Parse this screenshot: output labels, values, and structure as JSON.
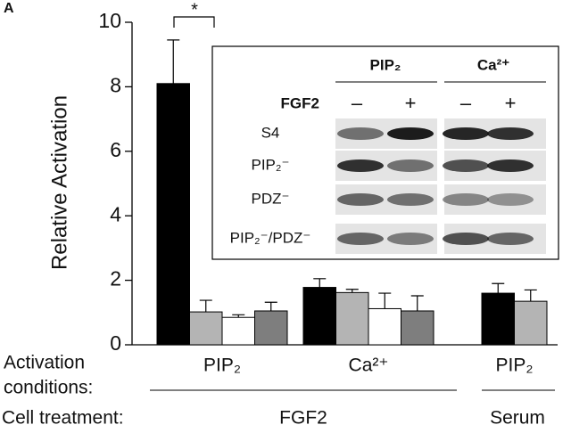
{
  "chart_data": {
    "type": "bar",
    "panel_label": "A",
    "ylabel": "Relative Activation",
    "categories": [
      "PIP₂",
      "Ca²⁺",
      "PIP₂"
    ],
    "series": [
      {
        "color": "#000000",
        "values": [
          8.1,
          1.78,
          1.6
        ],
        "errors": [
          1.35,
          0.27,
          0.3
        ]
      },
      {
        "color": "#b4b4b4",
        "values": [
          1.02,
          1.62,
          1.35
        ],
        "errors": [
          0.36,
          0.1,
          0.35
        ]
      },
      {
        "color": "#ffffff",
        "values": [
          0.85,
          1.12,
          null
        ],
        "errors": [
          0.08,
          0.48,
          null
        ]
      },
      {
        "color": "#7e7e7e",
        "values": [
          1.05,
          1.05,
          null
        ],
        "errors": [
          0.27,
          0.47,
          null
        ]
      }
    ],
    "ylim": [
      0,
      10
    ],
    "yticks": [
      0,
      2,
      4,
      6,
      8,
      10
    ],
    "significance": "*",
    "activation_label": [
      "Activation",
      "conditions:"
    ],
    "treatment_label": "Cell treatment:",
    "treatments": [
      "FGF2",
      "Serum"
    ]
  },
  "inset": {
    "column_headers": [
      "PIP₂",
      "Ca²⁺"
    ],
    "treatment": "FGF2",
    "lanes": [
      "–",
      "+",
      "–",
      "+"
    ],
    "rows": [
      "S4",
      "PIP₂⁻",
      "PDZ⁻",
      "PIP₂⁻/PDZ⁻"
    ]
  }
}
